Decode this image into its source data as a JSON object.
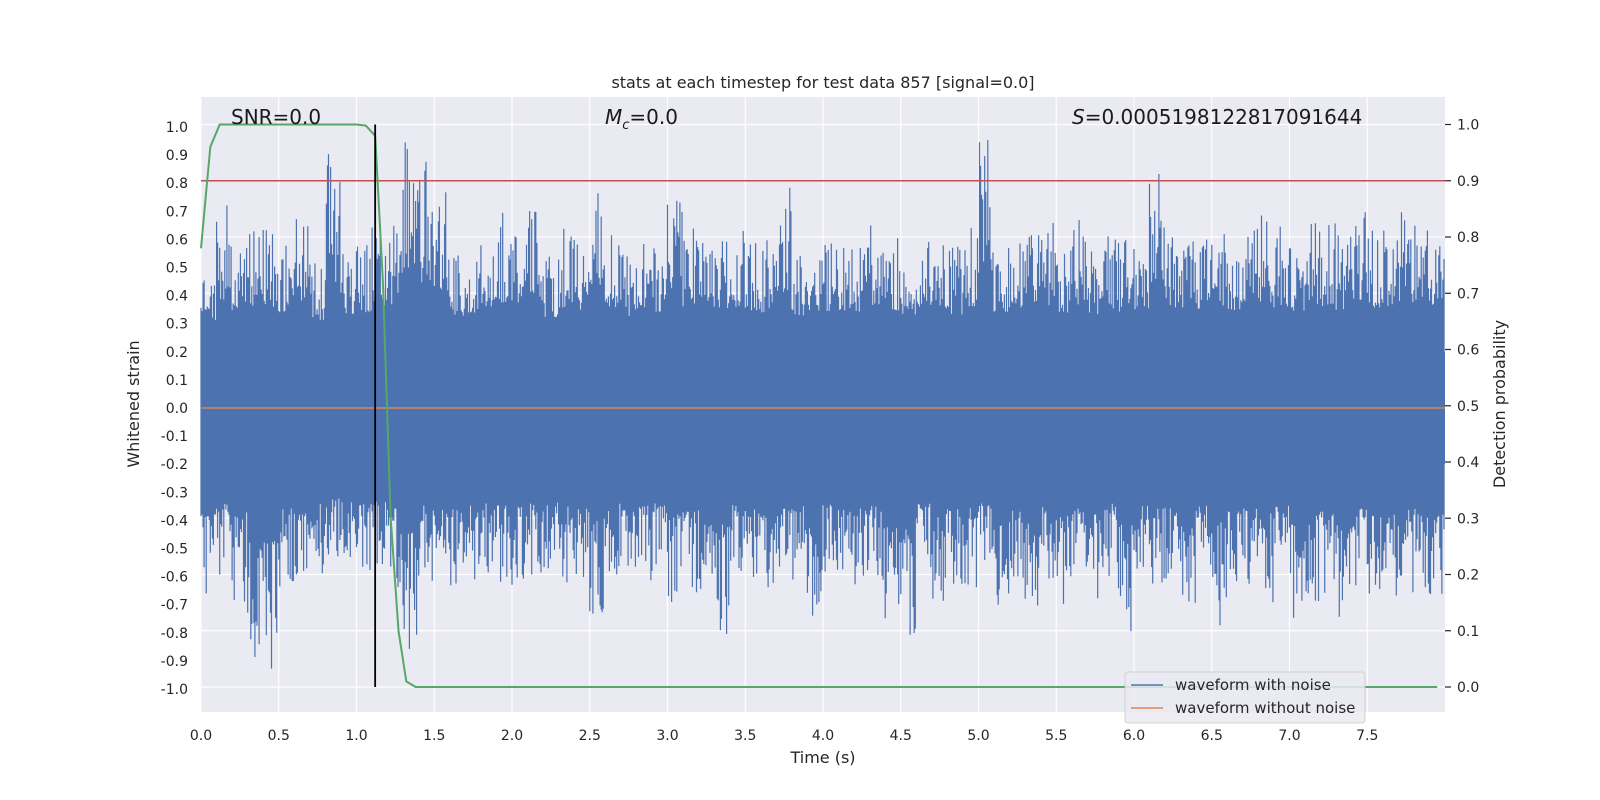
{
  "chart_data": {
    "type": "line",
    "title": "stats at each timestep for test data 857 [signal=0.0]",
    "xlabel": "Time (s)",
    "ylabel": "Whitened strain",
    "y2label": "Detection probability",
    "xlim": [
      0,
      8
    ],
    "ylim": [
      -1.09,
      1.09
    ],
    "y2lim": [
      -0.045,
      1.045
    ],
    "xticks": [
      "0.0",
      "0.5",
      "1.0",
      "1.5",
      "2.0",
      "2.5",
      "3.0",
      "3.5",
      "4.0",
      "4.5",
      "5.0",
      "5.5",
      "6.0",
      "6.5",
      "7.0",
      "7.5"
    ],
    "yticks": [
      "1.0",
      "0.9",
      "0.8",
      "0.7",
      "0.6",
      "0.5",
      "0.4",
      "0.3",
      "0.2",
      "0.1",
      "0.0",
      "-0.1",
      "-0.2",
      "-0.3",
      "-0.4",
      "-0.5",
      "-0.6",
      "-0.7",
      "-0.8",
      "-0.9",
      "-1.0"
    ],
    "y2ticks": [
      "1.0",
      "0.9",
      "0.8",
      "0.7",
      "0.6",
      "0.5",
      "0.4",
      "0.3",
      "0.2",
      "0.1",
      "0.0"
    ],
    "annotations": {
      "snr": "SNR=0.0",
      "mc_symbol": "M",
      "mc_sub": "c",
      "mc_value": "=0.0",
      "s_symbol": "S",
      "s_value": "=0.0005198122817091644"
    },
    "threshold": {
      "value": 0.9,
      "axis": "y2",
      "color": "#c44e52"
    },
    "marker_time": 1.12,
    "series": [
      {
        "name": "waveform with noise",
        "color": "#4c72b0",
        "axis": "y",
        "note": "dense noise trace sampled over 0–8 s",
        "envelope_upper": [
          0.52,
          0.73,
          0.62,
          0.67,
          0.65,
          0.6,
          0.7,
          0.52,
          0.91,
          0.58,
          0.6,
          0.66,
          0.68,
          0.97,
          0.88,
          0.82,
          0.55,
          0.6,
          0.65,
          0.7,
          0.68,
          0.72,
          0.55,
          0.65,
          0.6,
          0.78,
          0.65,
          0.55,
          0.62,
          0.6,
          0.84,
          0.66,
          0.6,
          0.64,
          0.65,
          0.62,
          0.6,
          0.8,
          0.55,
          0.62,
          0.6,
          0.62,
          0.6,
          0.66,
          0.62,
          0.58,
          0.6,
          0.64,
          0.58,
          0.66,
          1.0,
          0.6,
          0.64,
          0.62,
          0.66,
          0.6,
          0.68,
          0.58,
          0.62,
          0.6,
          0.6,
          0.9,
          0.64,
          0.62,
          0.6,
          0.65,
          0.62,
          0.66,
          0.7,
          0.65,
          0.62,
          0.68,
          0.66,
          0.62,
          0.7,
          0.65,
          0.66,
          0.7,
          0.65,
          0.68
        ],
        "envelope_lower": [
          -0.71,
          -0.6,
          -0.69,
          -0.93,
          -0.98,
          -0.65,
          -0.62,
          -0.6,
          -0.55,
          -0.55,
          -0.6,
          -0.58,
          -0.65,
          -0.87,
          -0.62,
          -0.58,
          -0.64,
          -0.62,
          -0.6,
          -0.62,
          -0.63,
          -0.6,
          -0.59,
          -0.63,
          -0.65,
          -0.75,
          -0.6,
          -0.66,
          -0.62,
          -0.6,
          -0.71,
          -0.68,
          -0.65,
          -0.81,
          -0.6,
          -0.63,
          -0.72,
          -0.58,
          -0.62,
          -0.85,
          -0.6,
          -0.66,
          -0.65,
          -0.62,
          -0.83,
          -0.86,
          -0.6,
          -0.7,
          -0.65,
          -0.64,
          -0.6,
          -0.7,
          -0.66,
          -0.78,
          -0.62,
          -0.72,
          -0.65,
          -0.7,
          -0.6,
          -0.81,
          -0.62,
          -0.65,
          -0.64,
          -0.7,
          -0.62,
          -0.78,
          -0.68,
          -0.65,
          -0.7,
          -0.62,
          -0.8,
          -0.7,
          -0.68,
          -0.78,
          -0.65,
          -0.72,
          -0.7,
          -0.66,
          -0.65,
          -0.7
        ]
      },
      {
        "name": "waveform without noise",
        "color": "#dd8452",
        "axis": "y",
        "x": [
          0,
          8
        ],
        "values": [
          0.0,
          0.0
        ]
      },
      {
        "name": "detection probability",
        "color": "#55a868",
        "axis": "y2",
        "x": [
          0.0,
          0.06,
          0.12,
          0.2,
          0.4,
          0.6,
          0.8,
          1.0,
          1.06,
          1.12,
          1.17,
          1.22,
          1.27,
          1.32,
          1.38,
          1.5,
          7.95
        ],
        "values": [
          0.78,
          0.96,
          1.0,
          1.0,
          1.0,
          1.0,
          1.0,
          1.0,
          0.998,
          0.98,
          0.72,
          0.3,
          0.1,
          0.01,
          0.0,
          0.0,
          0.0
        ]
      }
    ],
    "legend": {
      "location": "lower-right",
      "entries": [
        {
          "label": "waveform with noise",
          "color": "#4c72b0"
        },
        {
          "label": "waveform without noise",
          "color": "#dd8452"
        }
      ]
    }
  }
}
